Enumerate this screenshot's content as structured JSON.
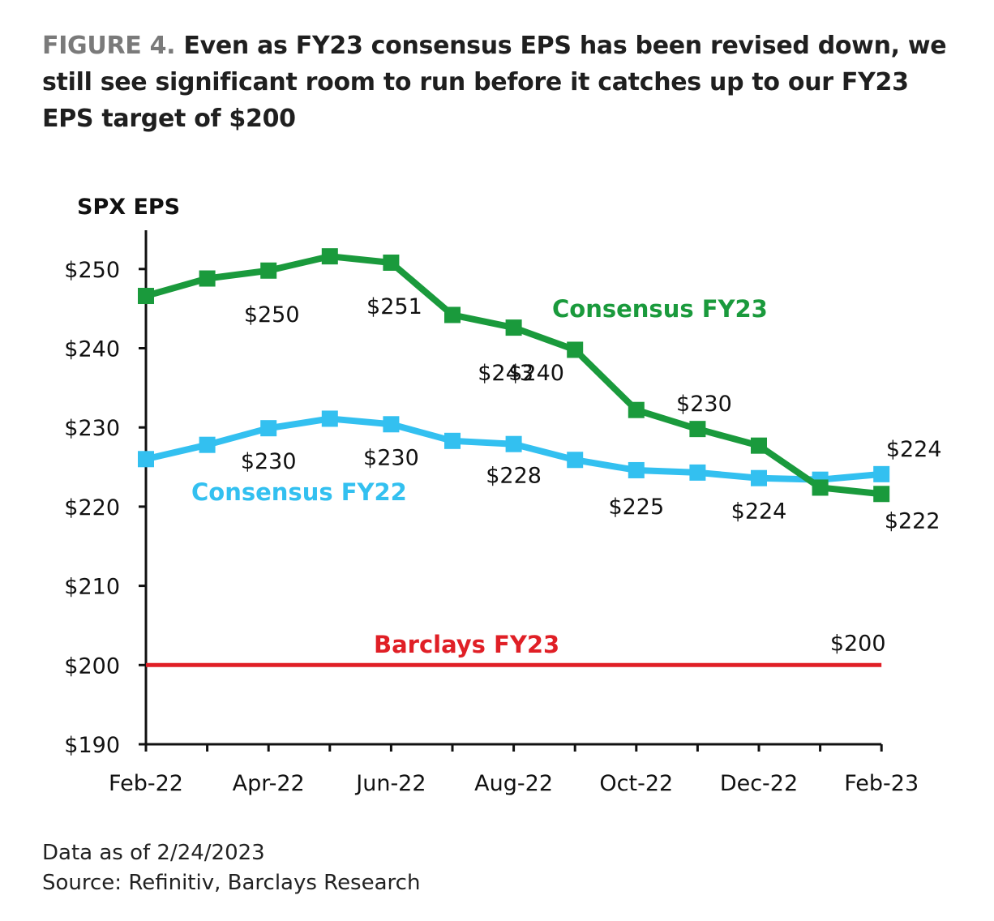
{
  "header": {
    "figure_label": "FIGURE 4.",
    "title": "Even as FY23 consensus EPS has been revised down, we still see significant room to run before it catches up to our FY23 EPS target of $200"
  },
  "footer": {
    "data_note": "Data as of 2/24/2023",
    "source": "Source: Refinitiv, Barclays Research"
  },
  "chart_data": {
    "type": "line",
    "title": "",
    "ylabel": "SPX EPS",
    "xlabel": "",
    "x": [
      "Feb-22",
      "Mar-22",
      "Apr-22",
      "May-22",
      "Jun-22",
      "Jul-22",
      "Aug-22",
      "Sep-22",
      "Oct-22",
      "Nov-22",
      "Dec-22",
      "Jan-23",
      "Feb-23"
    ],
    "x_tick_labels": [
      "Feb-22",
      "Apr-22",
      "Jun-22",
      "Aug-22",
      "Oct-22",
      "Dec-22",
      "Feb-23"
    ],
    "y_ticks": [
      "$190",
      "$200",
      "$210",
      "$220",
      "$230",
      "$240",
      "$250"
    ],
    "ylim": [
      190,
      255
    ],
    "grid": false,
    "series": [
      {
        "name": "Consensus FY23",
        "color": "#1a9a3c",
        "marker": "square",
        "values": [
          246.6,
          248.8,
          249.8,
          251.6,
          250.8,
          244.2,
          242.6,
          239.8,
          232.2,
          229.8,
          227.7,
          222.4,
          221.6
        ],
        "data_labels": [
          {
            "x": "Apr-22",
            "text": "$250"
          },
          {
            "x": "Jun-22",
            "text": "$251"
          },
          {
            "x": "Aug-22",
            "text": "$243"
          },
          {
            "x": "Aug-22",
            "text": "$240"
          },
          {
            "x": "Nov-22",
            "text": "$230"
          },
          {
            "x": "Feb-23",
            "text": "$222"
          }
        ]
      },
      {
        "name": "Consensus FY22",
        "color": "#33c0f0",
        "marker": "square",
        "values": [
          226.0,
          227.8,
          229.9,
          231.1,
          230.4,
          228.3,
          227.9,
          225.9,
          224.6,
          224.3,
          223.6,
          223.4,
          224.1
        ],
        "data_labels": [
          {
            "x": "Apr-22",
            "text": "$230"
          },
          {
            "x": "Jun-22",
            "text": "$230"
          },
          {
            "x": "Aug-22",
            "text": "$228"
          },
          {
            "x": "Oct-22",
            "text": "$225"
          },
          {
            "x": "Dec-22",
            "text": "$224"
          },
          {
            "x": "Feb-23",
            "text": "$224"
          }
        ]
      },
      {
        "name": "Barclays FY23",
        "color": "#e01f26",
        "marker": "none",
        "values": [
          200,
          200,
          200,
          200,
          200,
          200,
          200,
          200,
          200,
          200,
          200,
          200,
          200
        ],
        "data_labels": [
          {
            "x": "Feb-23",
            "text": "$200"
          }
        ]
      }
    ]
  }
}
